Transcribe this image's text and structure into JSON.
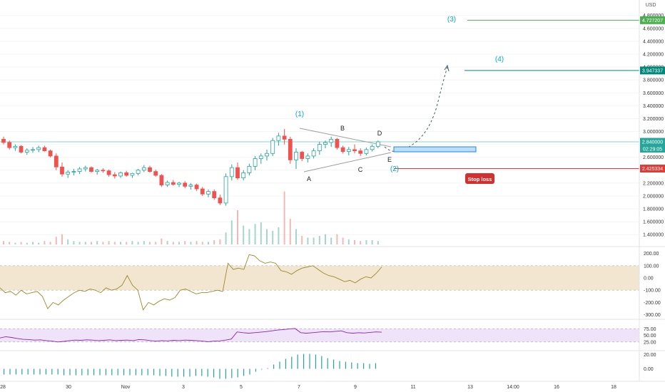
{
  "chart_data": [
    {
      "type": "candlestick",
      "title": "",
      "currency": "USD",
      "ylim": [
        1.3,
        4.85
      ],
      "y_tick_labels": [
        "4.800000",
        "4.600000",
        "4.400000",
        "4.200000",
        "4.000000",
        "3.800000",
        "3.600000",
        "3.400000",
        "3.200000",
        "3.000000",
        "2.800000",
        "2.600000",
        "2.400000",
        "2.200000",
        "2.000000",
        "1.800000",
        "1.600000",
        "1.400000"
      ],
      "y_ticks": [
        4.8,
        4.6,
        4.4,
        4.2,
        4.0,
        3.8,
        3.6,
        3.4,
        3.2,
        3.0,
        2.8,
        2.6,
        2.4,
        2.2,
        2.0,
        1.8,
        1.6,
        1.4
      ],
      "x_tick_labels": [
        "28",
        "30",
        "Nov",
        "3",
        "5",
        "7",
        "9",
        "11",
        "13",
        "14:00",
        "16",
        "18"
      ],
      "ohlc": [
        [
          2.88,
          2.92,
          2.8,
          2.83
        ],
        [
          2.83,
          2.86,
          2.72,
          2.75
        ],
        [
          2.75,
          2.8,
          2.7,
          2.77
        ],
        [
          2.77,
          2.79,
          2.66,
          2.68
        ],
        [
          2.68,
          2.74,
          2.64,
          2.71
        ],
        [
          2.71,
          2.76,
          2.67,
          2.72
        ],
        [
          2.72,
          2.78,
          2.68,
          2.75
        ],
        [
          2.75,
          2.78,
          2.69,
          2.7
        ],
        [
          2.7,
          2.72,
          2.6,
          2.62
        ],
        [
          2.62,
          2.66,
          2.4,
          2.45
        ],
        [
          2.45,
          2.52,
          2.3,
          2.34
        ],
        [
          2.34,
          2.4,
          2.28,
          2.37
        ],
        [
          2.37,
          2.42,
          2.32,
          2.38
        ],
        [
          2.38,
          2.45,
          2.34,
          2.42
        ],
        [
          2.42,
          2.47,
          2.38,
          2.44
        ],
        [
          2.44,
          2.46,
          2.36,
          2.38
        ],
        [
          2.38,
          2.42,
          2.33,
          2.4
        ],
        [
          2.4,
          2.43,
          2.36,
          2.39
        ],
        [
          2.39,
          2.41,
          2.3,
          2.33
        ],
        [
          2.33,
          2.37,
          2.27,
          2.31
        ],
        [
          2.31,
          2.38,
          2.28,
          2.36
        ],
        [
          2.36,
          2.39,
          2.3,
          2.32
        ],
        [
          2.32,
          2.36,
          2.28,
          2.35
        ],
        [
          2.35,
          2.42,
          2.32,
          2.4
        ],
        [
          2.4,
          2.48,
          2.37,
          2.44
        ],
        [
          2.44,
          2.47,
          2.36,
          2.38
        ],
        [
          2.38,
          2.41,
          2.3,
          2.32
        ],
        [
          2.32,
          2.34,
          2.14,
          2.17
        ],
        [
          2.17,
          2.24,
          2.14,
          2.21
        ],
        [
          2.21,
          2.25,
          2.16,
          2.18
        ],
        [
          2.18,
          2.22,
          2.14,
          2.2
        ],
        [
          2.2,
          2.23,
          2.12,
          2.15
        ],
        [
          2.15,
          2.2,
          2.1,
          2.17
        ],
        [
          2.17,
          2.19,
          2.08,
          2.11
        ],
        [
          2.11,
          2.14,
          2.0,
          2.03
        ],
        [
          2.03,
          2.1,
          1.98,
          2.07
        ],
        [
          2.07,
          2.1,
          1.94,
          1.97
        ],
        [
          1.97,
          2.02,
          1.86,
          1.89
        ],
        [
          1.89,
          2.35,
          1.85,
          2.3
        ],
        [
          2.3,
          2.49,
          2.24,
          2.44
        ],
        [
          2.44,
          2.52,
          2.25,
          2.28
        ],
        [
          2.28,
          2.4,
          2.24,
          2.36
        ],
        [
          2.36,
          2.5,
          2.32,
          2.46
        ],
        [
          2.46,
          2.62,
          2.4,
          2.58
        ],
        [
          2.58,
          2.66,
          2.5,
          2.62
        ],
        [
          2.62,
          2.72,
          2.55,
          2.66
        ],
        [
          2.66,
          2.9,
          2.62,
          2.86
        ],
        [
          2.86,
          2.98,
          2.78,
          2.93
        ],
        [
          2.93,
          3.04,
          2.8,
          2.88
        ],
        [
          2.88,
          2.92,
          2.5,
          2.56
        ],
        [
          2.56,
          2.74,
          2.42,
          2.68
        ],
        [
          2.68,
          2.7,
          2.54,
          2.58
        ],
        [
          2.58,
          2.66,
          2.52,
          2.62
        ],
        [
          2.62,
          2.74,
          2.58,
          2.7
        ],
        [
          2.7,
          2.84,
          2.64,
          2.8
        ],
        [
          2.8,
          2.86,
          2.74,
          2.83
        ],
        [
          2.83,
          2.92,
          2.76,
          2.88
        ],
        [
          2.88,
          2.9,
          2.72,
          2.75
        ],
        [
          2.75,
          2.78,
          2.66,
          2.69
        ],
        [
          2.69,
          2.76,
          2.63,
          2.72
        ],
        [
          2.72,
          2.8,
          2.66,
          2.7
        ],
        [
          2.7,
          2.74,
          2.62,
          2.66
        ],
        [
          2.66,
          2.75,
          2.63,
          2.72
        ],
        [
          2.72,
          2.8,
          2.69,
          2.77
        ],
        [
          2.77,
          2.86,
          2.74,
          2.84
        ]
      ],
      "volume": [
        4,
        3,
        2,
        3,
        2,
        3,
        2,
        4,
        3,
        9,
        12,
        6,
        4,
        3,
        3,
        3,
        4,
        3,
        4,
        3,
        3,
        3,
        4,
        3,
        4,
        3,
        3,
        7,
        4,
        3,
        3,
        4,
        3,
        4,
        3,
        3,
        5,
        6,
        14,
        28,
        40,
        22,
        18,
        24,
        26,
        18,
        16,
        20,
        62,
        30,
        18,
        10,
        8,
        8,
        10,
        12,
        8,
        12,
        8,
        6,
        5,
        4,
        5,
        5,
        4
      ],
      "price_levels": [
        {
          "value": 4.727207,
          "label": "4.727207",
          "color": "#4caf50"
        },
        {
          "value": 3.947337,
          "label": "3.947337",
          "color": "#00897b"
        },
        {
          "value": 2.84,
          "label": "2.840000",
          "color": "#26a69a"
        },
        {
          "value": 2.425334,
          "label": "2.425334",
          "color": "#e53935"
        }
      ],
      "countdown_label": "02:29:05",
      "annotations": {
        "wave_labels": [
          "(1)",
          "(2)",
          "(3)",
          "(4)"
        ],
        "pattern_labels": [
          "A",
          "B",
          "C",
          "D",
          "E"
        ],
        "stop_loss_label": "Stop loss"
      },
      "colors": {
        "up": "#26a69a",
        "down": "#ef5350",
        "accent": "#00bcd4",
        "stop": "#d32f2f"
      }
    },
    {
      "type": "line",
      "name_hint": "oscillator",
      "y_tick_labels": [
        "200.00",
        "100.00",
        "0.00",
        "-100.00",
        "-200.00",
        "-300.00"
      ],
      "y_ticks": [
        200,
        100,
        0,
        -100,
        -200,
        -300
      ],
      "band": [
        -100,
        100
      ],
      "values": [
        -80,
        -120,
        -110,
        -140,
        -100,
        -130,
        -120,
        -110,
        -150,
        -250,
        -200,
        -220,
        -180,
        -150,
        -120,
        -100,
        -110,
        -90,
        -100,
        -120,
        -80,
        -100,
        -90,
        -60,
        20,
        -60,
        -100,
        -260,
        -200,
        -220,
        -190,
        -170,
        -180,
        -160,
        -100,
        -90,
        -110,
        -130,
        -120,
        -120,
        -110,
        -100,
        -110,
        120,
        70,
        80,
        70,
        190,
        180,
        140,
        120,
        130,
        120,
        60,
        50,
        30,
        60,
        80,
        90,
        100,
        70,
        40,
        20,
        10,
        -10,
        -30,
        -20,
        -40,
        -10,
        10,
        0,
        40,
        90
      ],
      "colors": {
        "line": "#9a8a2a",
        "band": "#f3e6d0"
      }
    },
    {
      "type": "line",
      "name_hint": "rsi",
      "y_tick_labels": [
        "75.00",
        "50.00",
        "25.00"
      ],
      "y_ticks": [
        75,
        50,
        25
      ],
      "band": [
        25,
        75
      ],
      "values": [
        40,
        45,
        42,
        38,
        35,
        34,
        32,
        33,
        30,
        28,
        25,
        27,
        30,
        32,
        31,
        33,
        32,
        30,
        31,
        33,
        30,
        31,
        32,
        30,
        34,
        33,
        30,
        28,
        30,
        29,
        31,
        30,
        32,
        31,
        30,
        28,
        26,
        28,
        29,
        32,
        36,
        63,
        60,
        58,
        60,
        62,
        64,
        67,
        70,
        72,
        74,
        76,
        60,
        58,
        60,
        62,
        64,
        63,
        65,
        67,
        60,
        58,
        60,
        59,
        61,
        63,
        62
      ],
      "colors": {
        "line": "#8e24aa",
        "band": "#efe3fa"
      }
    },
    {
      "type": "bar",
      "name_hint": "momentum",
      "y_tick_labels": [
        "20.00",
        "0.00"
      ],
      "y_ticks": [
        20,
        0
      ],
      "values": [
        -8,
        -8,
        -8,
        -8,
        -8,
        -8,
        -8,
        -8,
        -8,
        -8,
        -9,
        -9,
        -9,
        -9,
        -9,
        -9,
        -9,
        -9,
        -9,
        -9,
        -9,
        -9,
        -9,
        -9,
        -9,
        -9,
        -10,
        -10,
        -11,
        -11,
        -11,
        -11,
        -10,
        -10,
        -11,
        -12,
        -14,
        -14,
        -13,
        -12,
        -10,
        -8,
        -4,
        -1,
        1,
        6,
        10,
        14,
        17,
        20,
        21,
        21,
        20,
        18,
        15,
        13,
        11,
        10,
        9,
        8,
        8,
        7,
        8
      ],
      "colors": {
        "bar": "#26a69a"
      }
    }
  ],
  "time_axis": {
    "labels": [
      "28",
      "30",
      "Nov",
      "3",
      "5",
      "7",
      "9",
      "11",
      "13",
      "14:00",
      "16",
      "18"
    ]
  }
}
